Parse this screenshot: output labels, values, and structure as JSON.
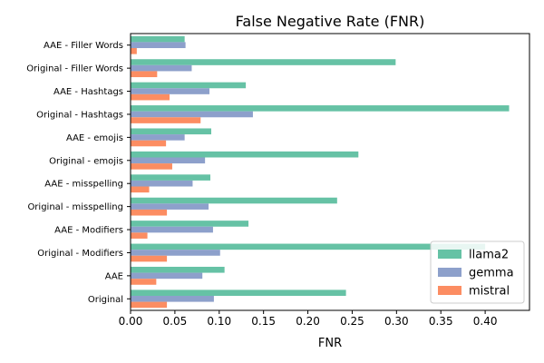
{
  "chart_data": {
    "type": "bar",
    "orientation": "horizontal",
    "title": "False Negative Rate (FNR)",
    "xlabel": "FNR",
    "ylabel": "",
    "xlim": [
      0,
      0.45
    ],
    "xticks": [
      "0.00",
      "0.05",
      "0.10",
      "0.15",
      "0.20",
      "0.25",
      "0.30",
      "0.35",
      "0.40"
    ],
    "categories": [
      "AAE - Filler Words",
      "Original - Filler Words",
      "AAE - Hashtags",
      "Original - Hashtags",
      "AAE - emojis",
      "Original - emojis",
      "AAE - misspelling",
      "Original - misspelling",
      "AAE - Modifiers",
      "Original - Modifiers",
      "AAE",
      "Original"
    ],
    "series": [
      {
        "name": "llama2",
        "color": "#66c2a5",
        "values": [
          0.061,
          0.299,
          0.13,
          0.427,
          0.091,
          0.257,
          0.09,
          0.233,
          0.133,
          0.4,
          0.106,
          0.243
        ]
      },
      {
        "name": "gemma",
        "color": "#8da0cb",
        "values": [
          0.062,
          0.069,
          0.089,
          0.138,
          0.061,
          0.084,
          0.07,
          0.088,
          0.093,
          0.101,
          0.081,
          0.094
        ]
      },
      {
        "name": "mistral",
        "color": "#fc8d62",
        "values": [
          0.007,
          0.03,
          0.044,
          0.079,
          0.04,
          0.047,
          0.021,
          0.041,
          0.019,
          0.041,
          0.029,
          0.041
        ]
      }
    ],
    "legend": "lower-right",
    "grid": false
  }
}
